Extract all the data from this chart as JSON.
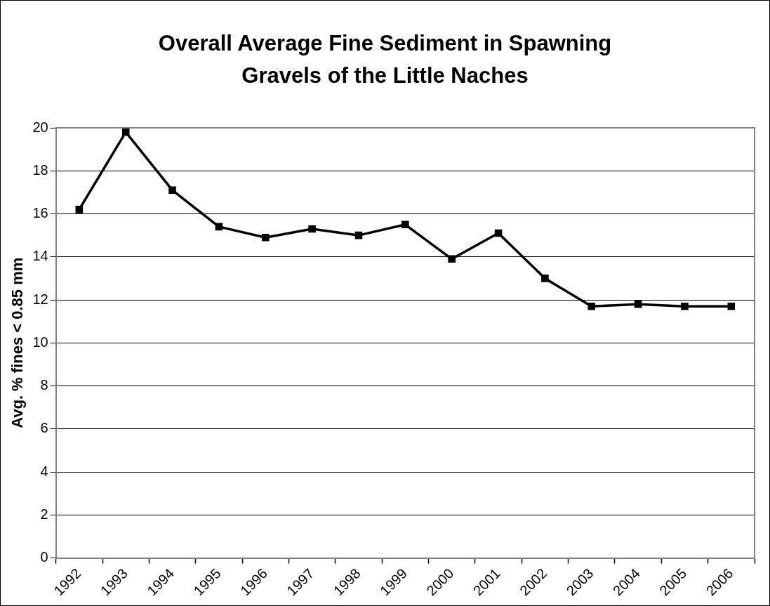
{
  "chart_data": {
    "type": "line",
    "title": "Overall Average Fine Sediment in Spawning Gravels of the Little Naches",
    "ylabel": "Avg. % fines < 0.85 mm",
    "categories": [
      "1992",
      "1993",
      "1994",
      "1995",
      "1996",
      "1997",
      "1998",
      "1999",
      "2000",
      "2001",
      "2002",
      "2003",
      "2004",
      "2005",
      "2006"
    ],
    "series": [
      {
        "color": "#000000",
        "values": [
          16.2,
          19.8,
          17.1,
          15.4,
          14.9,
          15.3,
          15.0,
          15.5,
          13.9,
          15.1,
          13.0,
          11.7,
          11.8,
          11.7,
          11.7
        ]
      }
    ],
    "ylim": [
      0,
      20
    ],
    "yticks": [
      0,
      2,
      4,
      6,
      8,
      10,
      12,
      14,
      16,
      18,
      20
    ],
    "grid": "y",
    "legend": false,
    "marker": "square",
    "line_style": "solid"
  }
}
